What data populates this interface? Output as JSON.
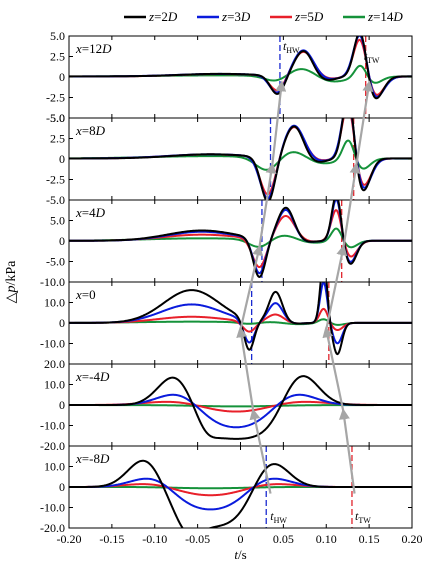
{
  "chart_data": {
    "type": "line",
    "legend": {
      "placement": "top",
      "entries": [
        {
          "var": "z",
          "eq": "=",
          "val": "2",
          "unit": "D",
          "color": "#000000"
        },
        {
          "var": "z",
          "eq": "=",
          "val": "3",
          "unit": "D",
          "color": "#0a1bdc"
        },
        {
          "var": "z",
          "eq": "=",
          "val": "5",
          "unit": "D",
          "color": "#e8202a"
        },
        {
          "var": "z",
          "eq": "=",
          "val": "14",
          "unit": "D",
          "color": "#15923a"
        }
      ]
    },
    "xaxis": {
      "sym": "t",
      "unit": "/s",
      "range": [
        -0.2,
        0.2
      ],
      "ticks": [
        -0.2,
        -0.15,
        -0.1,
        -0.05,
        0,
        0.05,
        0.1,
        0.15,
        0.2
      ],
      "tick_labels": [
        "-0.20",
        "-0.15",
        "-0.10",
        "-0.05",
        "0",
        "0.05",
        "0.10",
        "0.15",
        "0.20"
      ]
    },
    "ylabel": {
      "pre": "△",
      "sym": "p",
      "unit": "/kPa"
    },
    "marker_labels": {
      "hw": {
        "base": "t",
        "sub": "HW"
      },
      "tw": {
        "base": "t",
        "sub": "TW"
      }
    },
    "panels": [
      {
        "label": {
          "base": "x",
          "eq": "=12",
          "unit": "D"
        },
        "ylim": [
          -5,
          5
        ],
        "yticks": [
          5,
          2.5,
          0,
          -2.5,
          -5
        ],
        "ytick_labels": [
          "5.0",
          "2.5",
          "0",
          "-2.5",
          "-5.0"
        ],
        "t_hw": 0.046,
        "t_tw": 0.146,
        "series": [
          {
            "amp": 0.3,
            "w": 0.9,
            "f": 0.085,
            "v": 2.3,
            "p": 6.0,
            "pp": 3.2,
            "d": 0.6,
            "pt": 1.2
          },
          {
            "amp": 0.3,
            "w": 1.0,
            "f": 0.075,
            "v": 2.2,
            "p": 5.8,
            "pp": 3.3,
            "d": 0.5,
            "pt": 1.3
          },
          {
            "amp": 0.3,
            "w": 1.0,
            "f": 0.06,
            "v": 1.9,
            "p": 5.2,
            "pp": 3.1,
            "d": 0.4,
            "pt": 1.3
          },
          {
            "amp": 0.15,
            "w": 1.5,
            "f": 0.05,
            "v": 0.8,
            "p": 1.6,
            "pp": 1.5,
            "d": 1.0,
            "pt": 1.1
          }
        ]
      },
      {
        "label": {
          "base": "x",
          "eq": "=8",
          "unit": "D"
        },
        "ylim": [
          -5,
          5
        ],
        "yticks": [
          5,
          2.5,
          0,
          -2.5,
          -5
        ],
        "ytick_labels": [
          "5.0",
          "2.5",
          "0",
          "-2.5",
          "-5.0"
        ],
        "t_hw": 0.035,
        "t_tw": 0.132,
        "series": [
          {
            "amp": 0.5,
            "w": 0.9,
            "f": 0.075,
            "v": 5.5,
            "p": 8.4,
            "pp": 4.0,
            "d": 0.6,
            "pt": 1.1
          },
          {
            "amp": 0.5,
            "w": 1.0,
            "f": 0.07,
            "v": 5.2,
            "p": 8.0,
            "pp": 4.1,
            "d": 0.5,
            "pt": 1.2
          },
          {
            "amp": 0.5,
            "w": 1.0,
            "f": 0.06,
            "v": 4.7,
            "p": 7.2,
            "pp": 3.9,
            "d": 0.4,
            "pt": 1.2
          },
          {
            "amp": 0.3,
            "w": 1.5,
            "f": 0.05,
            "v": 1.8,
            "p": 2.6,
            "pp": 1.4,
            "d": 1.0,
            "pt": 1.1
          }
        ]
      },
      {
        "label": {
          "base": "x",
          "eq": "=4",
          "unit": "D"
        },
        "ylim": [
          -10,
          10
        ],
        "yticks": [
          5,
          0,
          -5,
          -10
        ],
        "ytick_labels": [
          "5.0",
          "0",
          "-5.0",
          "-10.0"
        ],
        "t_hw": 0.025,
        "t_tw": 0.118,
        "series": [
          {
            "amp": 2.5,
            "w": 0.8,
            "f": 0.065,
            "v": 9.5,
            "p": 11.5,
            "pp": 8.0,
            "d": 0.4,
            "pt": 0.9
          },
          {
            "amp": 2.2,
            "w": 0.8,
            "f": 0.06,
            "v": 8.5,
            "p": 10.5,
            "pp": 7.5,
            "d": 0.4,
            "pt": 0.9
          },
          {
            "amp": 1.5,
            "w": 0.9,
            "f": 0.05,
            "v": 7.0,
            "p": 8.0,
            "pp": 6.0,
            "d": 0.3,
            "pt": 1.0
          },
          {
            "amp": 0.6,
            "w": 1.3,
            "f": 0.05,
            "v": 2.0,
            "p": 3.3,
            "pp": 1.5,
            "d": 0.8,
            "pt": 1.0
          }
        ]
      },
      {
        "label": {
          "base": "x",
          "eq": "=0",
          "unit": ""
        },
        "ylim": [
          -20,
          20
        ],
        "yticks": [
          10,
          0,
          -10
        ],
        "ytick_labels": [
          "10.0",
          "0",
          "-10.0"
        ],
        "t_hw": 0.013,
        "t_tw": 0.103,
        "series": [
          {
            "amp": 16.0,
            "w": 0.65,
            "f": 0.05,
            "v": 15.0,
            "p": 30.5,
            "pp": 15.0,
            "d": 0.4,
            "pt": 0.65
          },
          {
            "amp": 9.0,
            "w": 0.7,
            "f": 0.06,
            "v": 11.0,
            "p": 20.0,
            "pp": 9.5,
            "d": 0.4,
            "pt": 0.7
          },
          {
            "amp": 3.0,
            "w": 0.8,
            "f": 0.05,
            "v": 5.0,
            "p": 7.0,
            "pp": 4.0,
            "d": 0.4,
            "pt": 0.8
          },
          {
            "amp": 0.6,
            "w": 1.2,
            "f": 0.05,
            "v": 0.8,
            "p": 2.0,
            "pp": 0.5,
            "d": 0.8,
            "pt": 1.0
          }
        ]
      },
      {
        "label": {
          "base": "x",
          "eq": "=-4",
          "unit": "D"
        },
        "ylim": [
          -20,
          20
        ],
        "yticks": [
          20,
          10,
          0,
          -10,
          -20
        ],
        "ytick_labels": [
          "20.0",
          "10.0",
          "0",
          "-10.0",
          "-20.0"
        ],
        "shape": "wave",
        "series": [
          {
            "a1": 16.0,
            "c1": -0.075,
            "w1": 0.02,
            "a2": 16.0,
            "c2": 0.07,
            "w2": 0.02,
            "flat": -17.0,
            "fc": -0.005,
            "fw": 0.052,
            "e": 0.012,
            "dip": 3.0,
            "dc": -0.04,
            "dw": 0.01
          },
          {
            "a1": 7.0,
            "c1": -0.07,
            "w1": 0.025,
            "a2": 7.0,
            "c2": 0.06,
            "w2": 0.025,
            "flat": -12.5,
            "fc": -0.005,
            "fw": 0.045,
            "e": 0.015,
            "dip": 0,
            "dc": 0,
            "dw": 0.01
          },
          {
            "a1": 2.5,
            "c1": -0.07,
            "w1": 0.035,
            "a2": 2.5,
            "c2": 0.06,
            "w2": 0.035,
            "flat": -5.0,
            "fc": -0.005,
            "fw": 0.045,
            "e": 0.02,
            "dip": 0,
            "dc": 0,
            "dw": 0.01
          },
          {
            "a1": 0.3,
            "c1": -0.06,
            "w1": 0.04,
            "a2": 0.3,
            "c2": 0.05,
            "w2": 0.04,
            "flat": -1.2,
            "fc": -0.005,
            "fw": 0.06,
            "e": 0.03,
            "dip": 0,
            "dc": 0,
            "dw": 0.01
          }
        ]
      },
      {
        "label": {
          "base": "x",
          "eq": "=-8",
          "unit": "D"
        },
        "ylim": [
          -20,
          20
        ],
        "yticks": [
          10,
          0,
          -10,
          -20
        ],
        "ytick_labels": [
          "10.0",
          "0",
          "-10.0",
          "-20.0"
        ],
        "t_hw": 0.03,
        "t_tw": 0.13,
        "shape": "wave",
        "series": [
          {
            "a1": 15.0,
            "c1": -0.11,
            "w1": 0.02,
            "a2": 13.5,
            "c2": 0.035,
            "w2": 0.02,
            "flat": -20.0,
            "fc": -0.037,
            "fw": 0.05,
            "e": 0.012,
            "dip": 6.0,
            "dc": -0.06,
            "dw": 0.012
          },
          {
            "a1": 6.0,
            "c1": -0.1,
            "w1": 0.025,
            "a2": 6.0,
            "c2": 0.03,
            "w2": 0.025,
            "flat": -12.5,
            "fc": -0.035,
            "fw": 0.045,
            "e": 0.015,
            "dip": 0,
            "dc": 0,
            "dw": 0.01
          },
          {
            "a1": 2.5,
            "c1": -0.1,
            "w1": 0.03,
            "a2": 2.5,
            "c2": 0.03,
            "w2": 0.03,
            "flat": -5.5,
            "fc": -0.035,
            "fw": 0.045,
            "e": 0.02,
            "dip": 0,
            "dc": 0,
            "dw": 0.01
          },
          {
            "a1": 0.3,
            "c1": -0.1,
            "w1": 0.04,
            "a2": 0.3,
            "c2": 0.03,
            "w2": 0.04,
            "flat": -1.0,
            "fc": -0.035,
            "fw": 0.06,
            "e": 0.03,
            "dip": 0,
            "dc": 0,
            "dw": 0.01
          }
        ]
      }
    ],
    "hw_path": [
      [
        0.048,
        0
      ],
      [
        0.037,
        1
      ],
      [
        0.022,
        2
      ],
      [
        0.0,
        3
      ],
      [
        0.015,
        4
      ],
      [
        0.035,
        5
      ]
    ],
    "tw_path": [
      [
        0.15,
        0
      ],
      [
        0.135,
        1
      ],
      [
        0.12,
        2
      ],
      [
        0.1,
        3
      ],
      [
        0.12,
        4
      ],
      [
        0.133,
        5
      ]
    ]
  }
}
